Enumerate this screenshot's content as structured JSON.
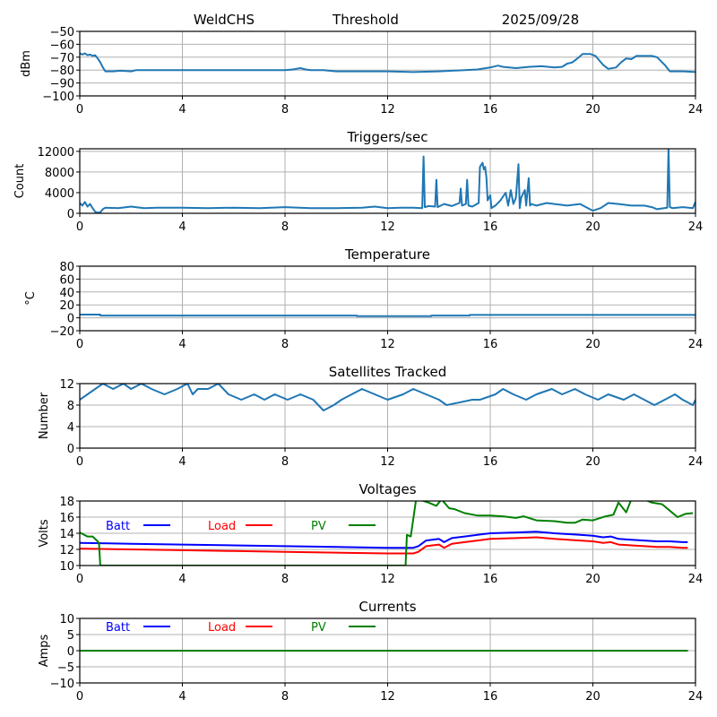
{
  "header": {
    "station": "WeldCHS",
    "mode": "Threshold",
    "date": "2025/09/28"
  },
  "chart_data": [
    {
      "id": "dbm",
      "type": "line",
      "title": "",
      "xlabel": "",
      "ylabel": "dBm",
      "xlim": [
        0,
        24
      ],
      "ylim": [
        -100,
        -50
      ],
      "xticks": [
        0,
        4,
        8,
        12,
        16,
        20,
        24
      ],
      "yticks": [
        -100,
        -90,
        -80,
        -70,
        -60,
        -50
      ],
      "ytick_labels": [
        "−100",
        "−90",
        "−80",
        "−70",
        "−60",
        "−50"
      ],
      "grid": true,
      "series": [
        {
          "name": "signal",
          "color": "#1f77b4",
          "x": [
            0,
            0.1,
            0.2,
            0.3,
            0.4,
            0.5,
            0.6,
            0.7,
            0.8,
            0.9,
            1.0,
            1.3,
            1.6,
            2.0,
            2.2,
            3.0,
            4.0,
            5.0,
            6.0,
            7.0,
            8.0,
            8.3,
            8.6,
            8.8,
            9.0,
            9.5,
            10.0,
            11.0,
            12.0,
            13.0,
            14.0,
            14.5,
            15.0,
            15.5,
            16.0,
            16.3,
            16.5,
            17.0,
            17.5,
            18.0,
            18.5,
            18.8,
            19.0,
            19.2,
            19.4,
            19.6,
            19.9,
            20.1,
            20.4,
            20.6,
            20.9,
            21.1,
            21.3,
            21.5,
            21.7,
            22.0,
            22.3,
            22.5,
            22.8,
            23.0,
            23.5,
            24.0
          ],
          "y": [
            -67,
            -68,
            -67,
            -68.5,
            -68,
            -69,
            -68.5,
            -71,
            -74,
            -78,
            -81,
            -81,
            -80.5,
            -81,
            -80,
            -80,
            -80,
            -80,
            -80,
            -80,
            -80,
            -79.5,
            -78.5,
            -79.5,
            -80,
            -80,
            -81,
            -81,
            -81,
            -81.5,
            -81,
            -80.5,
            -80,
            -79.5,
            -78,
            -76.5,
            -77.5,
            -78.5,
            -77.5,
            -77,
            -78,
            -77.5,
            -75,
            -74,
            -71,
            -67.5,
            -67.5,
            -69,
            -76,
            -79,
            -78,
            -74,
            -71,
            -71.5,
            -69,
            -69,
            -69,
            -70,
            -76,
            -81,
            -81,
            -81.5
          ]
        }
      ]
    },
    {
      "id": "triggers",
      "type": "line",
      "title": "Triggers/sec",
      "xlabel": "",
      "ylabel": "Count",
      "xlim": [
        0,
        24
      ],
      "ylim": [
        0,
        12500
      ],
      "xticks": [
        0,
        4,
        8,
        12,
        16,
        20,
        24
      ],
      "yticks": [
        0,
        4000,
        8000,
        12000
      ],
      "ytick_labels": [
        "0",
        "4000",
        "8000",
        "12000"
      ],
      "grid": true,
      "series": [
        {
          "name": "triggers",
          "color": "#1f77b4",
          "x": [
            0,
            0.1,
            0.2,
            0.3,
            0.4,
            0.5,
            0.6,
            0.7,
            0.8,
            0.9,
            1.0,
            1.5,
            2.0,
            2.5,
            3.0,
            4.0,
            5.0,
            6.0,
            7.0,
            8.0,
            9.0,
            10.0,
            11.0,
            11.5,
            12.0,
            12.5,
            13.0,
            13.35,
            13.4,
            13.45,
            13.6,
            13.85,
            13.9,
            13.95,
            14.2,
            14.5,
            14.8,
            14.85,
            14.9,
            15.05,
            15.1,
            15.15,
            15.3,
            15.55,
            15.6,
            15.7,
            15.75,
            15.8,
            15.85,
            15.9,
            16.0,
            16.05,
            16.2,
            16.4,
            16.6,
            16.7,
            16.8,
            16.9,
            17.0,
            17.1,
            17.15,
            17.2,
            17.35,
            17.4,
            17.5,
            17.55,
            17.6,
            17.8,
            18.2,
            18.5,
            19.0,
            19.5,
            20.0,
            20.3,
            20.6,
            21.0,
            21.5,
            22.0,
            22.3,
            22.5,
            22.9,
            22.95,
            23.0,
            23.1,
            23.5,
            23.9,
            24.0
          ],
          "y": [
            2000,
            1500,
            2200,
            1300,
            1800,
            1000,
            300,
            100,
            200,
            800,
            1100,
            1000,
            1300,
            1000,
            1100,
            1100,
            1000,
            1100,
            1000,
            1200,
            1000,
            1000,
            1100,
            1300,
            1000,
            1100,
            1100,
            1000,
            11000,
            1200,
            1400,
            1300,
            6500,
            1200,
            1800,
            1400,
            2000,
            4800,
            1500,
            1800,
            6500,
            1500,
            1300,
            2000,
            9000,
            9800,
            8500,
            9000,
            7000,
            2500,
            3500,
            1000,
            1500,
            2500,
            4000,
            1500,
            4500,
            1800,
            3000,
            9500,
            1000,
            3000,
            4500,
            1500,
            6800,
            1500,
            1800,
            1500,
            2000,
            1800,
            1500,
            1800,
            500,
            1000,
            2000,
            1800,
            1500,
            1500,
            1200,
            800,
            1100,
            12500,
            1200,
            1000,
            1200,
            1000,
            2200
          ]
        }
      ]
    },
    {
      "id": "temperature",
      "type": "line",
      "title": "Temperature",
      "xlabel": "",
      "ylabel": "°C",
      "xlim": [
        0,
        24
      ],
      "ylim": [
        -20,
        80
      ],
      "xticks": [
        0,
        4,
        8,
        12,
        16,
        20,
        24
      ],
      "yticks": [
        -20,
        0,
        20,
        40,
        60,
        80
      ],
      "ytick_labels": [
        "−20",
        "0",
        "20",
        "40",
        "60",
        "80"
      ],
      "grid": true,
      "series": [
        {
          "name": "temperature",
          "color": "#1f77b4",
          "x": [
            0,
            0.8,
            0.8,
            10.8,
            10.8,
            13.7,
            13.7,
            15.2,
            15.2,
            24
          ],
          "y": [
            5,
            5,
            3.5,
            3.5,
            2.5,
            2.5,
            3.5,
            3.5,
            4.5,
            4.5
          ]
        }
      ]
    },
    {
      "id": "satellites",
      "type": "line",
      "title": "Satellites Tracked",
      "xlabel": "",
      "ylabel": "Number",
      "xlim": [
        0,
        24
      ],
      "ylim": [
        0,
        12
      ],
      "xticks": [
        0,
        4,
        8,
        12,
        16,
        20,
        24
      ],
      "yticks": [
        0,
        4,
        8,
        12
      ],
      "ytick_labels": [
        "0",
        "4",
        "8",
        "12"
      ],
      "grid": true,
      "series": [
        {
          "name": "satellites",
          "color": "#1f77b4",
          "x": [
            0,
            0.3,
            0.6,
            0.9,
            1.3,
            1.7,
            2.0,
            2.4,
            2.8,
            3.3,
            3.8,
            4.2,
            4.4,
            4.6,
            5.0,
            5.4,
            5.8,
            6.3,
            6.8,
            7.2,
            7.6,
            8.1,
            8.6,
            9.1,
            9.5,
            9.9,
            10.2,
            10.6,
            11.0,
            11.5,
            12.0,
            12.6,
            13.0,
            13.5,
            14.0,
            14.3,
            15.3,
            15.6,
            16.2,
            16.5,
            16.9,
            17.4,
            17.8,
            18.4,
            18.8,
            19.3,
            19.7,
            20.2,
            20.6,
            21.2,
            21.6,
            22.0,
            22.4,
            22.8,
            23.2,
            23.5,
            23.9,
            24.0
          ],
          "y": [
            9,
            10,
            11,
            12,
            11,
            12,
            11,
            12,
            11,
            10,
            11,
            12,
            10,
            11,
            11,
            12,
            10,
            9,
            10,
            9,
            10,
            9,
            10,
            9,
            7,
            8,
            9,
            10,
            11,
            10,
            9,
            10,
            11,
            10,
            9,
            8,
            9,
            9,
            10,
            11,
            10,
            9,
            10,
            11,
            10,
            11,
            10,
            9,
            10,
            9,
            10,
            9,
            8,
            9,
            10,
            9,
            8,
            9
          ]
        }
      ]
    },
    {
      "id": "voltages",
      "type": "line",
      "title": "Voltages",
      "xlabel": "",
      "ylabel": "Volts",
      "xlim": [
        0,
        24
      ],
      "ylim": [
        10,
        18
      ],
      "xticks": [
        0,
        4,
        8,
        12,
        16,
        20,
        24
      ],
      "yticks": [
        10,
        12,
        14,
        16,
        18
      ],
      "ytick_labels": [
        "10",
        "12",
        "14",
        "16",
        "18"
      ],
      "grid": true,
      "legend": [
        {
          "label": "Batt",
          "color": "#0000ff"
        },
        {
          "label": "Load",
          "color": "#ff0000"
        },
        {
          "label": "PV",
          "color": "#008000"
        }
      ],
      "legend_placement": "top-left",
      "series": [
        {
          "name": "Batt",
          "color": "#0000ff",
          "x": [
            0,
            2,
            4,
            6,
            8,
            10,
            12,
            13.0,
            13.2,
            13.5,
            14.0,
            14.2,
            14.5,
            15.0,
            15.5,
            16.0,
            17.0,
            17.8,
            18.5,
            19.5,
            20.0,
            20.4,
            20.7,
            21.0,
            21.5,
            22.0,
            22.5,
            23.0,
            23.5,
            23.7
          ],
          "y": [
            12.8,
            12.7,
            12.6,
            12.5,
            12.4,
            12.3,
            12.2,
            12.2,
            12.4,
            13.1,
            13.3,
            12.9,
            13.4,
            13.6,
            13.8,
            14.0,
            14.1,
            14.2,
            14.0,
            13.8,
            13.7,
            13.5,
            13.6,
            13.3,
            13.2,
            13.1,
            13.0,
            13.0,
            12.9,
            12.9
          ]
        },
        {
          "name": "Load",
          "color": "#ff0000",
          "x": [
            0,
            2,
            4,
            6,
            8,
            10,
            12,
            13.0,
            13.2,
            13.5,
            14.0,
            14.2,
            14.5,
            15.0,
            15.5,
            16.0,
            17.0,
            17.8,
            18.5,
            19.5,
            20.0,
            20.4,
            20.7,
            21.0,
            21.5,
            22.0,
            22.5,
            23.0,
            23.5,
            23.7
          ],
          "y": [
            12.1,
            12.0,
            11.9,
            11.8,
            11.7,
            11.6,
            11.5,
            11.5,
            11.7,
            12.4,
            12.6,
            12.2,
            12.7,
            12.9,
            13.1,
            13.3,
            13.4,
            13.5,
            13.3,
            13.1,
            13.0,
            12.8,
            12.9,
            12.6,
            12.5,
            12.4,
            12.3,
            12.3,
            12.2,
            12.2
          ]
        },
        {
          "name": "PV",
          "color": "#008000",
          "x": [
            0,
            0.3,
            0.5,
            0.7,
            0.75,
            0.8,
            12.7,
            12.75,
            12.9,
            13.1,
            13.2,
            13.6,
            13.9,
            14.1,
            14.4,
            14.6,
            15.0,
            15.5,
            16.0,
            16.5,
            17.0,
            17.3,
            17.8,
            18.5,
            19.0,
            19.3,
            19.6,
            20.0,
            20.5,
            20.8,
            21.0,
            21.3,
            21.5,
            22.0,
            22.3,
            22.7,
            23.0,
            23.3,
            23.6,
            23.9
          ],
          "y": [
            14.1,
            13.6,
            13.6,
            13.0,
            12.7,
            10.0,
            10.0,
            13.8,
            13.6,
            18.0,
            18.2,
            17.8,
            17.4,
            18.2,
            17.1,
            17.0,
            16.5,
            16.2,
            16.2,
            16.1,
            15.9,
            16.1,
            15.6,
            15.5,
            15.3,
            15.3,
            15.7,
            15.6,
            16.1,
            16.3,
            17.8,
            16.6,
            18.2,
            18.2,
            17.8,
            17.6,
            16.8,
            16.0,
            16.4,
            16.5
          ]
        }
      ]
    },
    {
      "id": "currents",
      "type": "line",
      "title": "Currents",
      "xlabel": "",
      "ylabel": "Amps",
      "xlim": [
        0,
        24
      ],
      "ylim": [
        -10,
        10
      ],
      "xticks": [
        0,
        4,
        8,
        12,
        16,
        20,
        24
      ],
      "yticks": [
        -10,
        -5,
        0,
        5,
        10
      ],
      "ytick_labels": [
        "−10",
        "−5",
        "0",
        "5",
        "10"
      ],
      "grid": true,
      "legend": [
        {
          "label": "Batt",
          "color": "#0000ff"
        },
        {
          "label": "Load",
          "color": "#ff0000"
        },
        {
          "label": "PV",
          "color": "#008000"
        }
      ],
      "legend_placement": "top-left",
      "series": [
        {
          "name": "Batt",
          "color": "#0000ff",
          "x": [
            0,
            23.7
          ],
          "y": [
            0,
            0
          ]
        },
        {
          "name": "Load",
          "color": "#ff0000",
          "x": [
            0,
            23.7
          ],
          "y": [
            0,
            0
          ]
        },
        {
          "name": "PV",
          "color": "#008000",
          "x": [
            0,
            23.7
          ],
          "y": [
            0,
            0
          ]
        }
      ]
    }
  ]
}
